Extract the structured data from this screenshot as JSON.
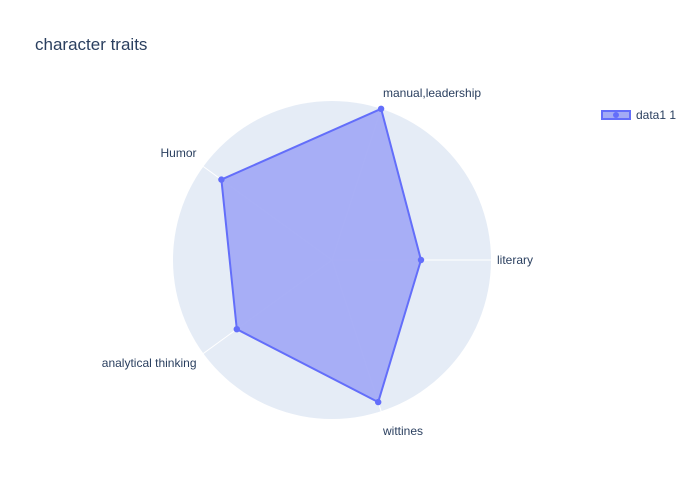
{
  "chart_data": {
    "type": "radar",
    "title": "character traits",
    "axes": [
      "literary",
      "manual,leadership",
      "Humor",
      "analytical thinking",
      "wittines"
    ],
    "rlim": [
      0,
      5
    ],
    "series": [
      {
        "name": "data1 1",
        "values": [
          2.8,
          5.0,
          4.3,
          3.7,
          4.7
        ]
      }
    ],
    "legend_position": "top-right",
    "colors": {
      "background_disc": "#e5ecf6",
      "grid": "#ffffff",
      "line": "#636efa",
      "fill": "#a3abf5",
      "text": "#2a3f5f"
    }
  }
}
